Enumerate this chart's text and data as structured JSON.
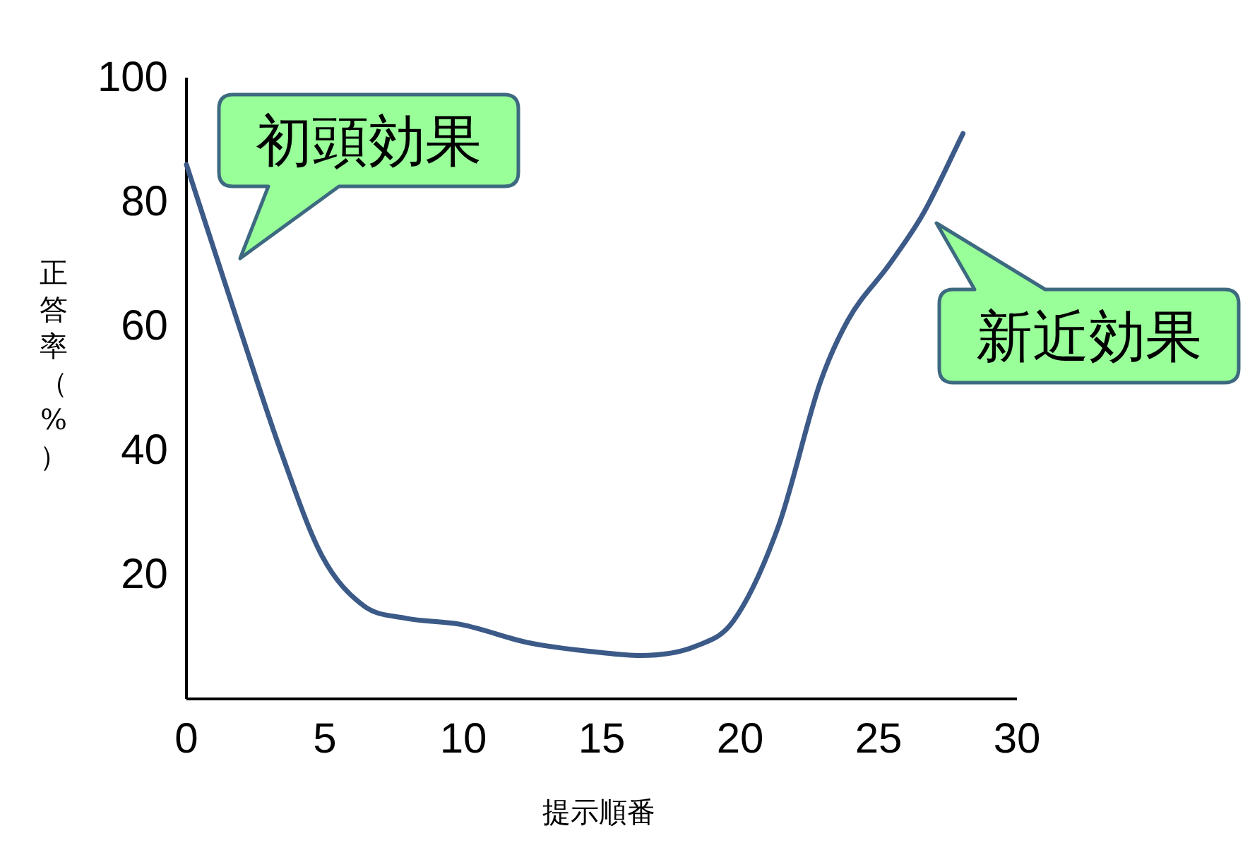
{
  "chart_data": {
    "type": "line",
    "xlabel": "提示順番",
    "ylabel": "正答率（%）",
    "x": [
      0,
      1.9,
      3.4,
      4.9,
      6.4,
      7.9,
      9.9,
      12.4,
      14.9,
      16.4,
      18.4,
      19.75,
      21.4,
      22.9,
      23.9,
      25.4,
      26.6,
      28.05
    ],
    "series": [
      {
        "color": "#3c5a88",
        "values": [
          86,
          60,
          40,
          23,
          15,
          13,
          12,
          9,
          7.5,
          7,
          8.5,
          12.5,
          28,
          51,
          61,
          70,
          78,
          91
        ]
      }
    ],
    "xlim": [
      0,
      30
    ],
    "xticks": [
      0,
      5,
      10,
      15,
      20,
      25,
      30
    ],
    "ylim": [
      0,
      100
    ],
    "yticks": [
      20,
      40,
      60,
      80,
      100
    ],
    "grid": false,
    "marker": "none",
    "line_style": "solid",
    "annotations": [
      "初頭効果",
      "新近効果"
    ]
  }
}
